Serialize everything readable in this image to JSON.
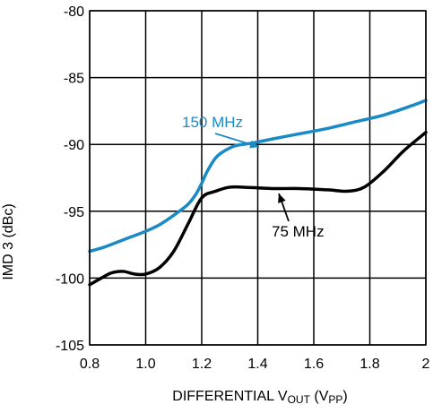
{
  "chart_data": {
    "type": "line",
    "xlabel": "DIFFERENTIAL V",
    "xlabel_sub1": "OUT",
    "xlabel_mid": " (V",
    "xlabel_sub2": "PP",
    "xlabel_end": ")",
    "ylabel": "IMD 3 (dBc)",
    "xlim": [
      0.8,
      2.0
    ],
    "ylim": [
      -105,
      -80
    ],
    "xticks": [
      0.8,
      1.0,
      1.2,
      1.4,
      1.6,
      1.8,
      2.0
    ],
    "xtick_labels": [
      "0.8",
      "1.0",
      "1.2",
      "1.4",
      "1.6",
      "1.8",
      "2"
    ],
    "yticks": [
      -105,
      -100,
      -95,
      -90,
      -85,
      -80
    ],
    "ytick_labels": [
      "-105",
      "-100",
      "-95",
      "-90",
      "-85",
      "-80"
    ],
    "grid": true,
    "series": [
      {
        "name": "150 MHz",
        "color": "#1a8ac4",
        "x": [
          0.8,
          0.85,
          0.9,
          0.95,
          1.0,
          1.05,
          1.1,
          1.15,
          1.18,
          1.2,
          1.22,
          1.25,
          1.28,
          1.32,
          1.38,
          1.45,
          1.55,
          1.65,
          1.75,
          1.85,
          1.95,
          2.0
        ],
        "y": [
          -98.0,
          -97.7,
          -97.3,
          -96.9,
          -96.5,
          -96.0,
          -95.3,
          -94.5,
          -93.7,
          -92.9,
          -92.0,
          -91.0,
          -90.5,
          -90.1,
          -89.9,
          -89.6,
          -89.2,
          -88.8,
          -88.3,
          -87.8,
          -87.1,
          -86.7
        ]
      },
      {
        "name": "75 MHz",
        "color": "#000000",
        "x": [
          0.8,
          0.85,
          0.88,
          0.92,
          0.96,
          1.0,
          1.05,
          1.1,
          1.15,
          1.2,
          1.25,
          1.3,
          1.35,
          1.45,
          1.55,
          1.65,
          1.72,
          1.78,
          1.85,
          1.92,
          2.0
        ],
        "y": [
          -100.5,
          -99.9,
          -99.6,
          -99.5,
          -99.7,
          -99.7,
          -99.2,
          -98.0,
          -96.0,
          -94.0,
          -93.5,
          -93.2,
          -93.2,
          -93.3,
          -93.3,
          -93.4,
          -93.5,
          -93.2,
          -92.0,
          -90.5,
          -89.1
        ]
      }
    ],
    "annotations": [
      {
        "text": "150 MHz",
        "color": "#1a8ac4"
      },
      {
        "text": "75 MHz",
        "color": "#000000"
      }
    ]
  }
}
